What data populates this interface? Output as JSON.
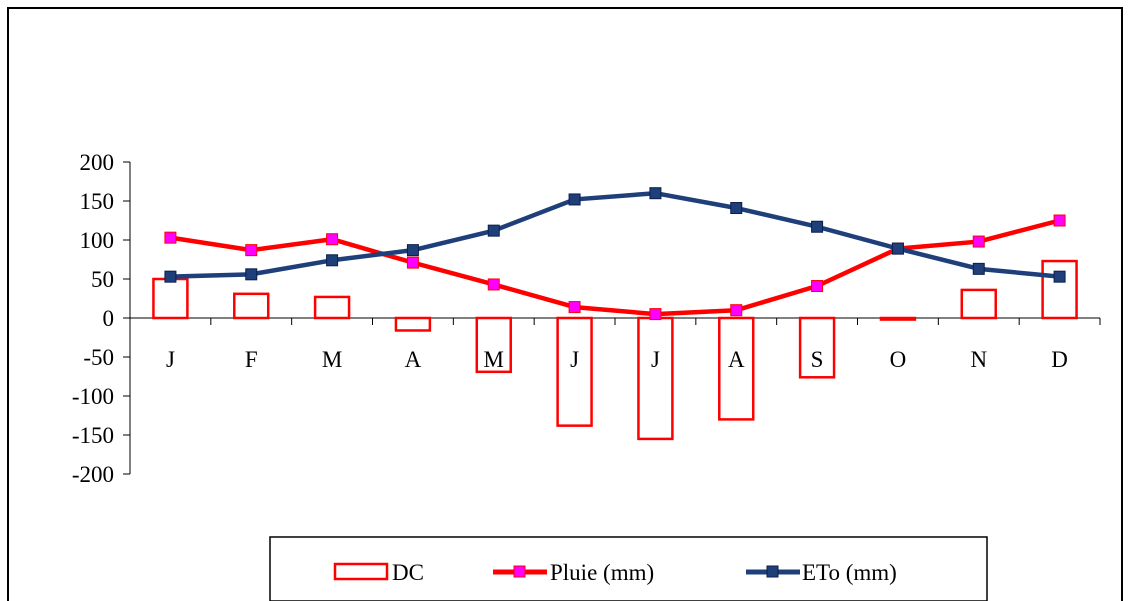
{
  "chart_data": {
    "type": "bar",
    "categories": [
      "J",
      "F",
      "M",
      "A",
      "M",
      "J",
      "J",
      "A",
      "S",
      "O",
      "N",
      "D"
    ],
    "ylim": [
      -200,
      200
    ],
    "yticks": [
      200,
      150,
      100,
      50,
      0,
      -50,
      -100,
      -150,
      -200
    ],
    "ytick_labels": [
      "200",
      "150",
      "100",
      "50",
      "0",
      "-50",
      "-100",
      "-150",
      "-200"
    ],
    "legend_position": "bottom",
    "series": [
      {
        "name": "DC",
        "kind": "bar",
        "color": "#ff0000",
        "values": [
          50,
          31,
          27,
          -16,
          -69,
          -138,
          -155,
          -130,
          -76,
          -2,
          36,
          73
        ]
      },
      {
        "name": "Pluie (mm)",
        "kind": "line",
        "color": "#ff0000",
        "marker_color": "#ff00ff",
        "values": [
          103,
          87,
          101,
          71,
          43,
          14,
          5,
          10,
          41,
          89,
          98,
          125
        ]
      },
      {
        "name": "ETo (mm)",
        "kind": "line",
        "color": "#1f3f7a",
        "marker_color": "#1f3f7a",
        "values": [
          53,
          56,
          74,
          87,
          112,
          152,
          160,
          141,
          117,
          89,
          63,
          53
        ]
      }
    ]
  }
}
